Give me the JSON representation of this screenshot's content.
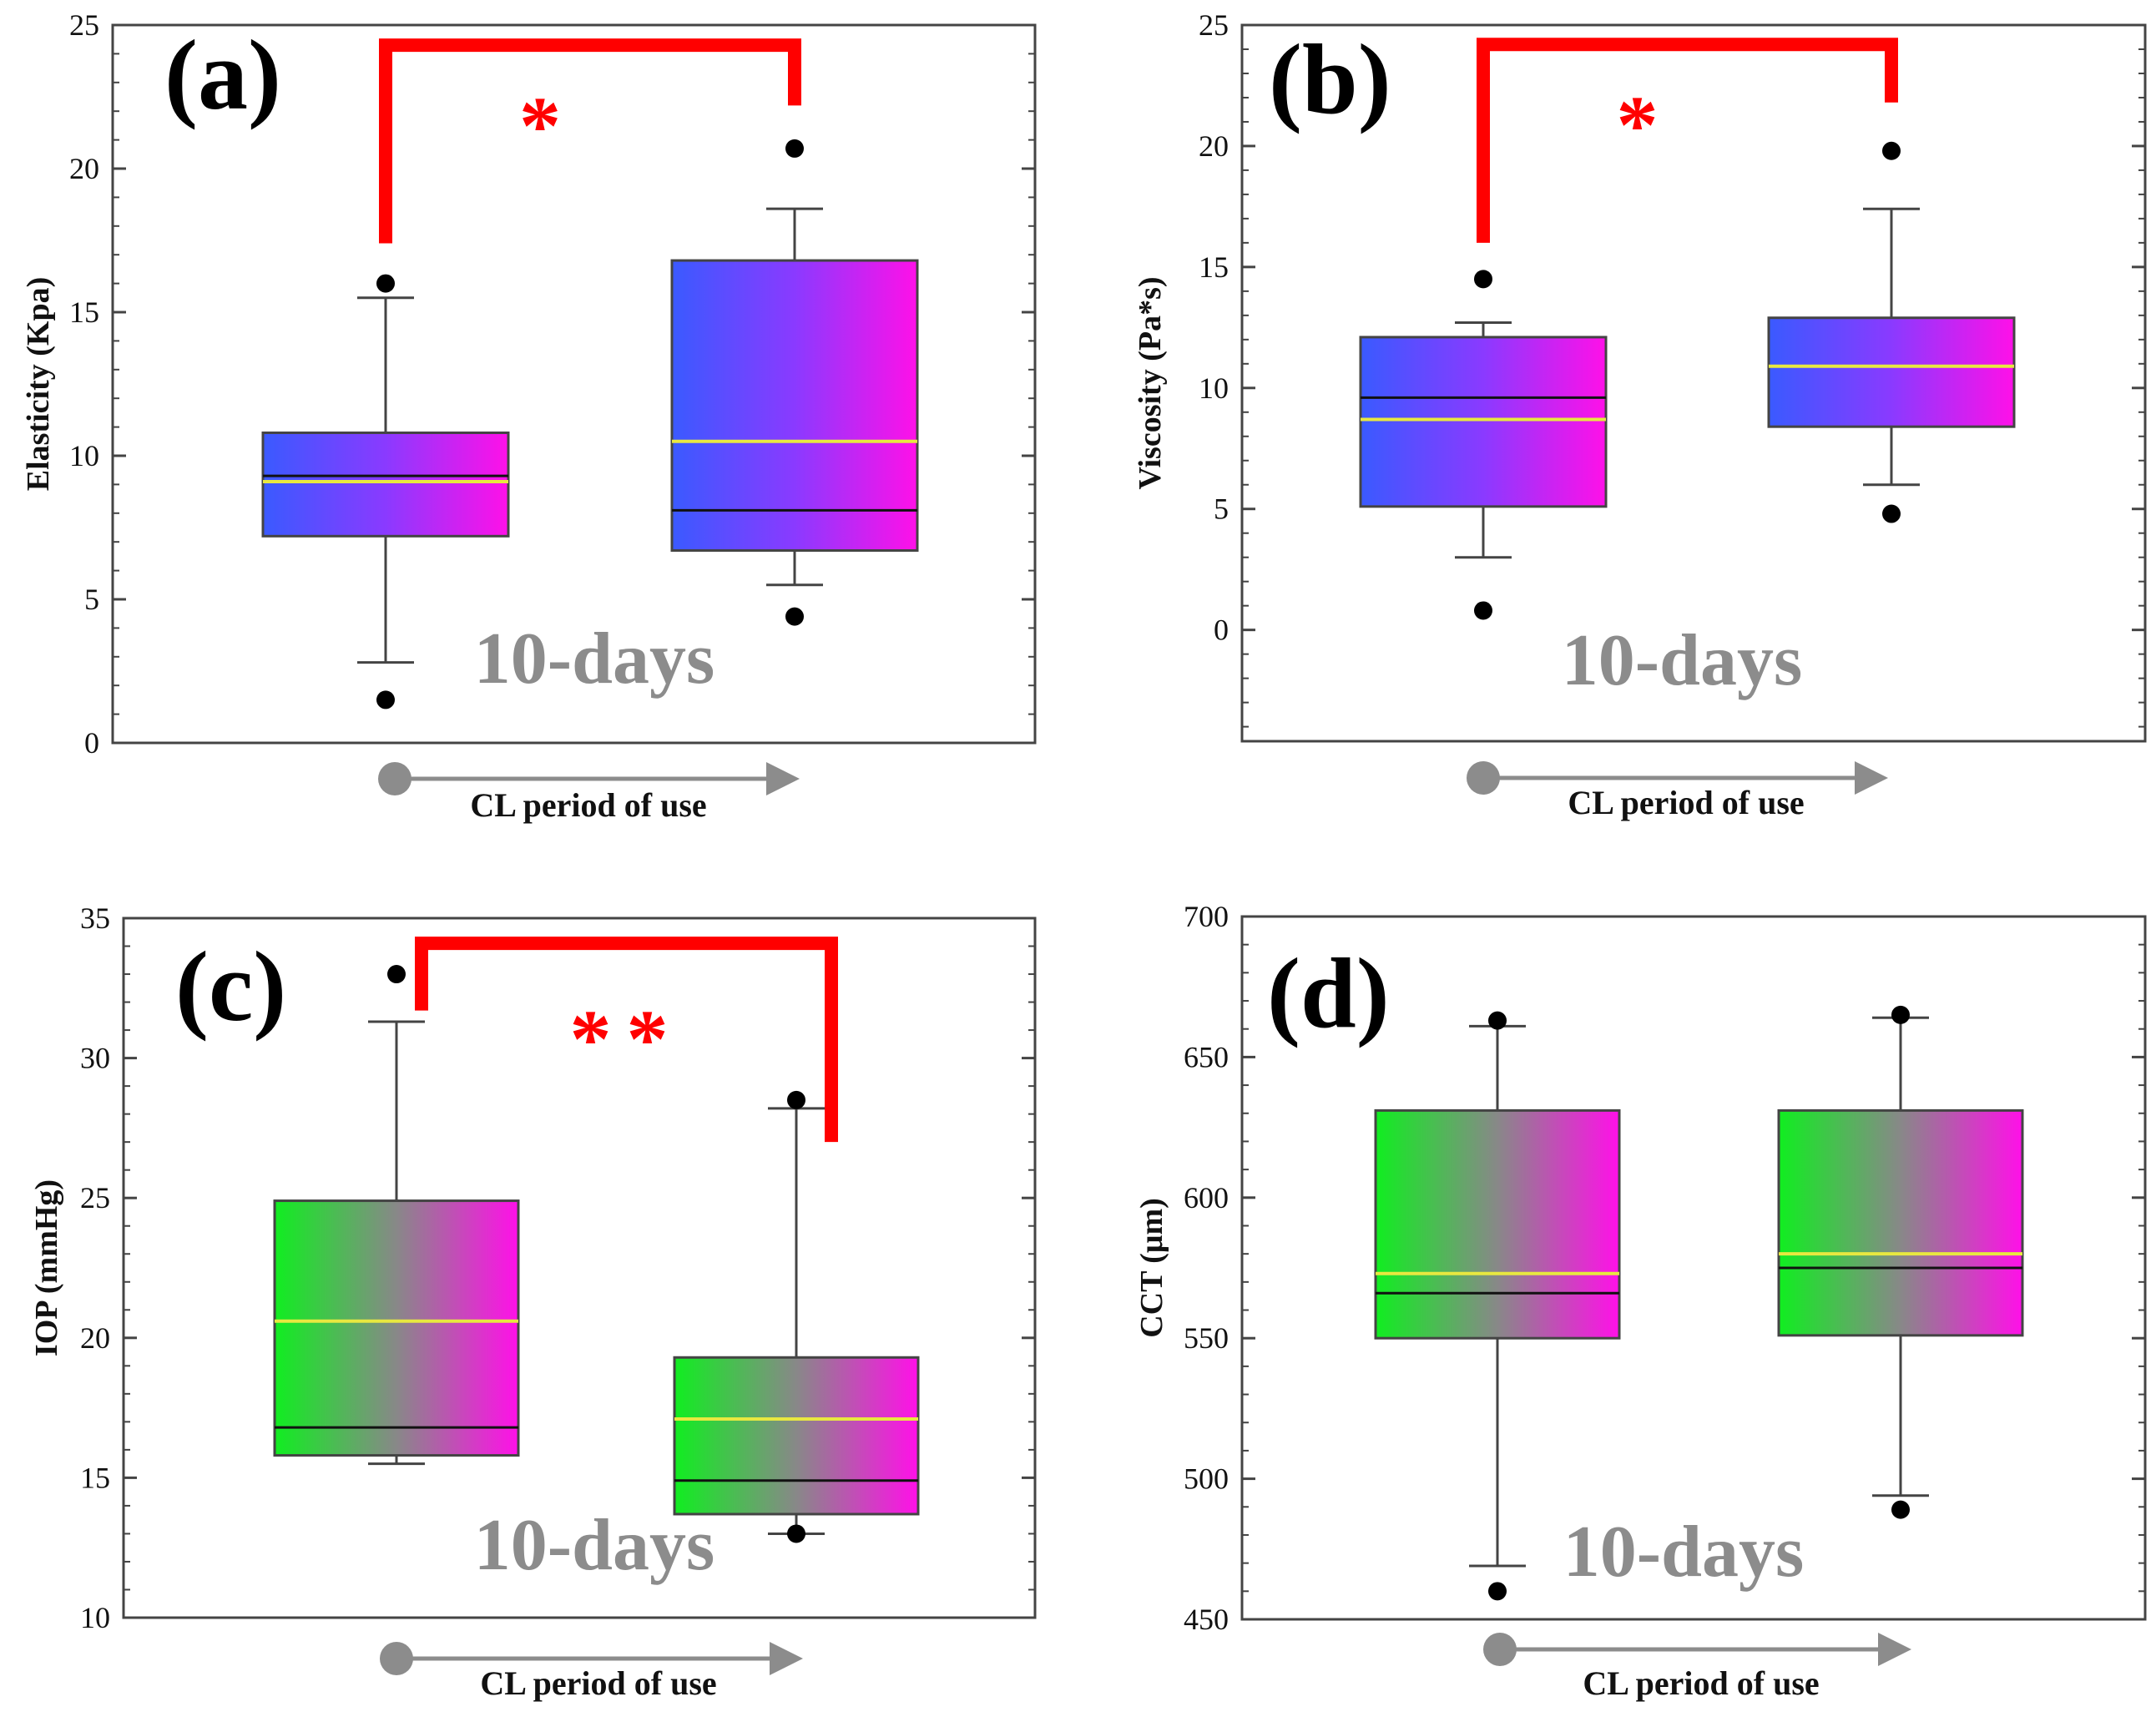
{
  "colors": {
    "frame": "#444444",
    "axis_gray": "#8c8c8c",
    "significance": "#ff0000",
    "median_line": "#111111",
    "mean_line": "#e8e840",
    "whisker": "#444444",
    "outlier": "#000000",
    "blue_magenta_left": "#3a5aff",
    "blue_magenta_mid": "#8a3aff",
    "blue_magenta_right": "#ff10e8",
    "green_magenta_left": "#10ee20",
    "green_magenta_mid": "#888888",
    "green_magenta_right": "#ff10e8"
  },
  "chart_data": [
    {
      "type": "box",
      "panel_label": "(a)",
      "ylabel": "Elasticity (Kpa)",
      "xlabel": "CL period of use",
      "period_label": "10-days",
      "ylim": [
        0,
        25
      ],
      "yticks": [
        0,
        5,
        10,
        15,
        20,
        25
      ],
      "ytick_labels": [
        "0",
        "5",
        "10",
        "15",
        "20",
        "25"
      ],
      "fill": "blue-magenta",
      "boxes": [
        {
          "q1": 7.2,
          "median": 9.3,
          "mean": 9.1,
          "q3": 10.8,
          "whisker_low": 2.8,
          "whisker_high": 15.5,
          "outliers": [
            1.5,
            16.0
          ]
        },
        {
          "q1": 6.7,
          "median": 8.1,
          "mean": 10.5,
          "q3": 16.8,
          "whisker_low": 5.5,
          "whisker_high": 18.6,
          "outliers": [
            4.4,
            20.7
          ]
        }
      ],
      "significance": {
        "label": "*",
        "top": 24.3,
        "left_end": 17.4,
        "right_end": 22.2
      }
    },
    {
      "type": "box",
      "panel_label": "(b)",
      "ylabel": "Viscosity (Pa*s)",
      "xlabel": "CL period of use",
      "period_label": "10-days",
      "ylim": [
        -4.6,
        25
      ],
      "yticks": [
        0,
        5,
        10,
        15,
        20,
        25
      ],
      "ytick_labels": [
        "0",
        "5",
        "10",
        "15",
        "20",
        "25"
      ],
      "fill": "blue-magenta",
      "boxes": [
        {
          "q1": 5.1,
          "median": 9.6,
          "mean": 8.7,
          "q3": 12.1,
          "whisker_low": 3.0,
          "whisker_high": 12.7,
          "outliers": [
            0.8,
            14.5
          ]
        },
        {
          "q1": 8.4,
          "median": 10.9,
          "mean": 10.9,
          "q3": 12.9,
          "whisker_low": 6.0,
          "whisker_high": 17.4,
          "outliers": [
            4.8,
            19.8
          ]
        }
      ],
      "significance": {
        "label": "*",
        "top": 24.2,
        "left_end": 16.0,
        "right_end": 21.8
      }
    },
    {
      "type": "box",
      "panel_label": "(c)",
      "ylabel": "IOP (mmHg)",
      "xlabel": "CL period of use",
      "period_label": "10-days",
      "ylim": [
        10,
        35
      ],
      "yticks": [
        10,
        15,
        20,
        25,
        30,
        35
      ],
      "ytick_labels": [
        "10",
        "15",
        "20",
        "25",
        "30",
        "35"
      ],
      "fill": "green-magenta",
      "boxes": [
        {
          "q1": 15.8,
          "median": 16.8,
          "mean": 20.6,
          "q3": 24.9,
          "whisker_low": 15.5,
          "whisker_high": 31.3,
          "outliers": [
            33.0
          ]
        },
        {
          "q1": 13.7,
          "median": 14.9,
          "mean": 17.1,
          "q3": 19.3,
          "whisker_low": 13.0,
          "whisker_high": 28.2,
          "outliers": [
            13.0,
            28.5
          ]
        }
      ],
      "significance": {
        "label": "**",
        "top": 34.1,
        "left_end": 31.7,
        "right_end": 27.0
      }
    },
    {
      "type": "box",
      "panel_label": "(d)",
      "ylabel": "CCT (μm)",
      "xlabel": "CL period of use",
      "period_label": "10-days",
      "ylim": [
        450,
        700
      ],
      "yticks": [
        450,
        500,
        550,
        600,
        650,
        700
      ],
      "ytick_labels": [
        "450",
        "500",
        "550",
        "600",
        "650",
        "700"
      ],
      "fill": "green-magenta",
      "boxes": [
        {
          "q1": 550,
          "median": 566,
          "mean": 573,
          "q3": 631,
          "whisker_low": 469,
          "whisker_high": 661,
          "outliers": [
            460,
            663
          ]
        },
        {
          "q1": 551,
          "median": 575,
          "mean": 580,
          "q3": 631,
          "whisker_low": 494,
          "whisker_high": 664,
          "outliers": [
            489,
            665
          ]
        }
      ],
      "significance": null
    }
  ]
}
